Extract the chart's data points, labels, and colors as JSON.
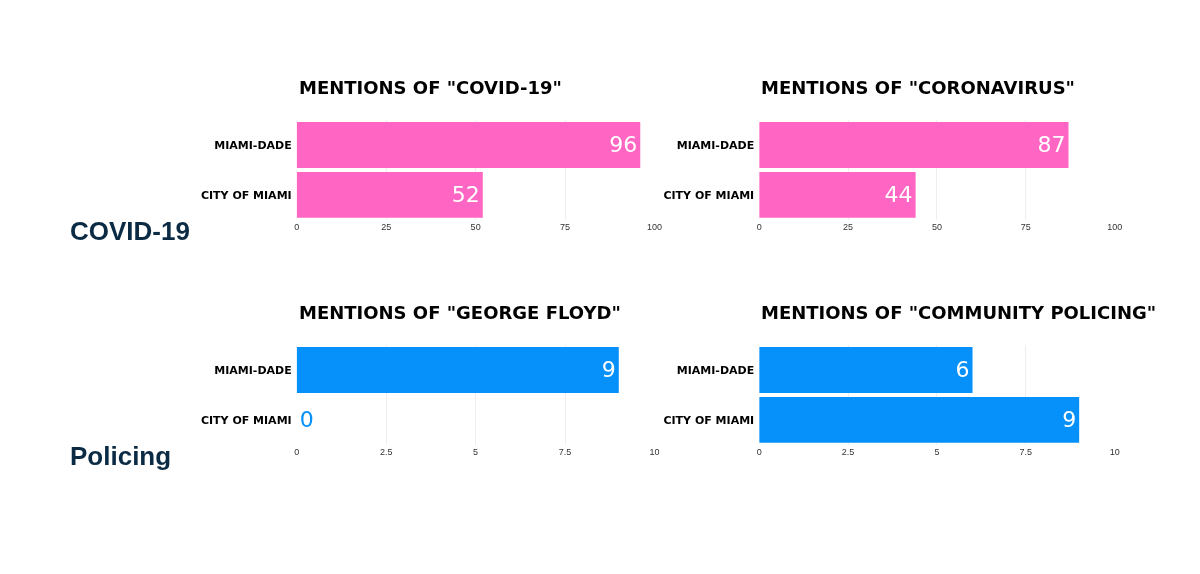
{
  "chart_data": [
    {
      "type": "bar",
      "orientation": "horizontal",
      "title": "MENTIONS OF \"COVID-19\"",
      "categories": [
        "MIAMI-DADE",
        "CITY OF MIAMI"
      ],
      "values": [
        96,
        52
      ],
      "color": "#ff66c4",
      "xlim": [
        0,
        100
      ],
      "xticks": [
        0,
        25,
        50,
        75,
        100
      ],
      "grid": "x",
      "data_labels": true,
      "annotations": [
        "COVID-19"
      ]
    },
    {
      "type": "bar",
      "orientation": "horizontal",
      "title": "MENTIONS OF \"CORONAVIRUS\"",
      "categories": [
        "MIAMI-DADE",
        "CITY OF MIAMI"
      ],
      "values": [
        87,
        44
      ],
      "color": "#ff66c4",
      "xlim": [
        0,
        100
      ],
      "xticks": [
        0,
        25,
        50,
        75,
        100
      ],
      "grid": "x",
      "data_labels": true
    },
    {
      "type": "bar",
      "orientation": "horizontal",
      "title": "MENTIONS OF \"GEORGE FLOYD\"",
      "categories": [
        "MIAMI-DADE",
        "CITY OF MIAMI"
      ],
      "values": [
        9,
        0
      ],
      "color": "#0690fa",
      "xlim": [
        0,
        10
      ],
      "xticks": [
        0,
        2.5,
        5,
        7.5,
        10
      ],
      "grid": "x",
      "data_labels": true,
      "annotations": [
        "Policing"
      ]
    },
    {
      "type": "bar",
      "orientation": "horizontal",
      "title": "MENTIONS OF \"COMMUNITY POLICING\"",
      "categories": [
        "MIAMI-DADE",
        "CITY OF MIAMI"
      ],
      "values": [
        6,
        9
      ],
      "color": "#0690fa",
      "xlim": [
        0,
        10
      ],
      "xticks": [
        0,
        2.5,
        5,
        7.5,
        10
      ],
      "grid": "x",
      "data_labels": true
    }
  ]
}
